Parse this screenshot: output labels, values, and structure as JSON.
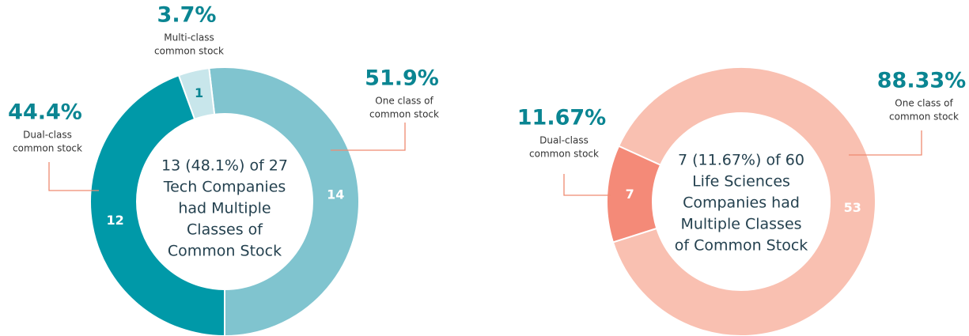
{
  "chart_data": [
    {
      "type": "pie",
      "categories": [
        [
          "One class of",
          "common stock"
        ],
        [
          "Multi-class",
          "common stock"
        ],
        [
          "Dual-class",
          "common stock"
        ]
      ],
      "values": [
        14,
        1,
        12
      ],
      "percent_labels": [
        "51.9%",
        "3.7%",
        "44.4%"
      ],
      "colors": [
        "#80c4cf",
        "#c8e6eb",
        "#0099a8"
      ],
      "count_colors": [
        "#ffffff",
        "#0a8592",
        "#ffffff"
      ],
      "center_text": [
        "13 (48.1%) of 27",
        "Tech Companies",
        "had Multiple",
        "Classes of",
        "Common Stock"
      ]
    },
    {
      "type": "pie",
      "categories": [
        [
          "One class of",
          "common stock"
        ],
        [
          "Dual-class",
          "common stock"
        ]
      ],
      "values": [
        53,
        7
      ],
      "percent_labels": [
        "88.33%",
        "11.67%"
      ],
      "colors": [
        "#f9c0b1",
        "#f48a78"
      ],
      "count_colors": [
        "#ffffff",
        "#ffffff"
      ],
      "center_text": [
        "7 (11.67%) of 60",
        "Life Sciences",
        "Companies had",
        "Multiple Classes",
        "of Common Stock"
      ]
    }
  ]
}
